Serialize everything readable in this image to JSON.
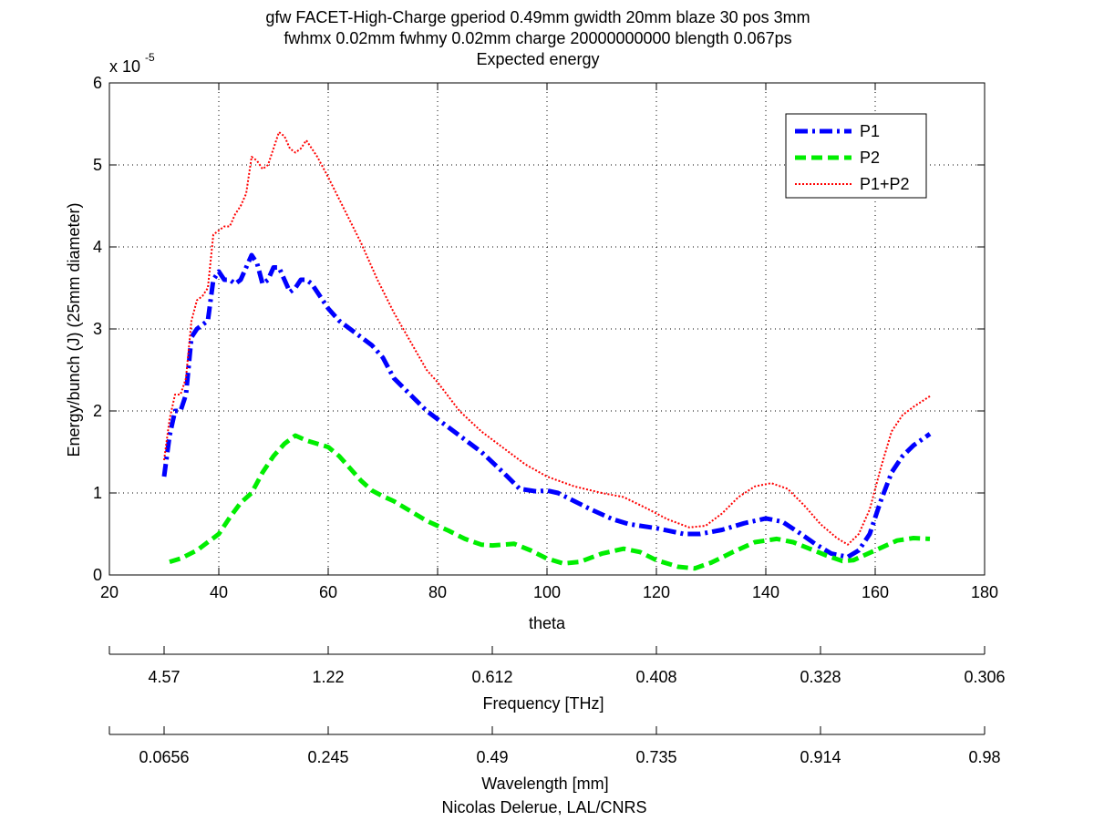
{
  "chart_data": {
    "type": "line",
    "title_lines": [
      "gfw FACET-High-Charge gperiod 0.49mm gwidth 20mm blaze 30 pos 3mm",
      "fwhmx 0.02mm fwhmy 0.02mm charge 20000000000 blength 0.067ps",
      "Expected energy"
    ],
    "xlabel": "theta",
    "ylabel": "Energy/bunch (J) (25mm diameter)",
    "y_multiplier": "x 10",
    "y_exponent": "-5",
    "xlim": [
      20,
      180
    ],
    "ylim": [
      0,
      6
    ],
    "xticks": [
      20,
      40,
      60,
      80,
      100,
      120,
      140,
      160,
      180
    ],
    "yticks": [
      0,
      1,
      2,
      3,
      4,
      5,
      6
    ],
    "grid": true,
    "legend_position": "top-right",
    "series": [
      {
        "name": "P1",
        "color": "#0000ff",
        "style": "dash-dot",
        "points": [
          [
            30,
            1.2
          ],
          [
            31,
            1.7
          ],
          [
            32,
            2.0
          ],
          [
            33,
            2.0
          ],
          [
            34,
            2.2
          ],
          [
            35,
            2.9
          ],
          [
            36,
            3.0
          ],
          [
            37,
            3.05
          ],
          [
            38,
            3.1
          ],
          [
            39,
            3.6
          ],
          [
            40,
            3.7
          ],
          [
            41,
            3.6
          ],
          [
            42,
            3.6
          ],
          [
            43,
            3.55
          ],
          [
            44,
            3.6
          ],
          [
            45,
            3.75
          ],
          [
            46,
            3.9
          ],
          [
            47,
            3.8
          ],
          [
            48,
            3.55
          ],
          [
            49,
            3.6
          ],
          [
            50,
            3.75
          ],
          [
            51,
            3.75
          ],
          [
            52,
            3.6
          ],
          [
            53,
            3.45
          ],
          [
            54,
            3.5
          ],
          [
            55,
            3.6
          ],
          [
            56,
            3.6
          ],
          [
            57,
            3.55
          ],
          [
            58,
            3.45
          ],
          [
            60,
            3.25
          ],
          [
            62,
            3.1
          ],
          [
            64,
            3.0
          ],
          [
            66,
            2.9
          ],
          [
            68,
            2.8
          ],
          [
            70,
            2.65
          ],
          [
            72,
            2.4
          ],
          [
            75,
            2.2
          ],
          [
            78,
            2.0
          ],
          [
            80,
            1.9
          ],
          [
            84,
            1.7
          ],
          [
            88,
            1.5
          ],
          [
            92,
            1.25
          ],
          [
            95,
            1.05
          ],
          [
            98,
            1.02
          ],
          [
            100,
            1.03
          ],
          [
            102,
            1.0
          ],
          [
            105,
            0.9
          ],
          [
            108,
            0.8
          ],
          [
            112,
            0.68
          ],
          [
            115,
            0.62
          ],
          [
            120,
            0.57
          ],
          [
            125,
            0.5
          ],
          [
            128,
            0.5
          ],
          [
            132,
            0.55
          ],
          [
            136,
            0.63
          ],
          [
            140,
            0.69
          ],
          [
            143,
            0.65
          ],
          [
            146,
            0.52
          ],
          [
            149,
            0.38
          ],
          [
            152,
            0.26
          ],
          [
            155,
            0.22
          ],
          [
            157,
            0.3
          ],
          [
            159,
            0.5
          ],
          [
            161,
            0.9
          ],
          [
            163,
            1.25
          ],
          [
            165,
            1.45
          ],
          [
            167,
            1.58
          ],
          [
            170,
            1.72
          ]
        ]
      },
      {
        "name": "P2",
        "color": "#00ee00",
        "style": "dashed",
        "points": [
          [
            31,
            0.16
          ],
          [
            33,
            0.2
          ],
          [
            36,
            0.3
          ],
          [
            40,
            0.5
          ],
          [
            42,
            0.7
          ],
          [
            44,
            0.88
          ],
          [
            46,
            1.0
          ],
          [
            48,
            1.25
          ],
          [
            50,
            1.45
          ],
          [
            52,
            1.6
          ],
          [
            54,
            1.7
          ],
          [
            56,
            1.64
          ],
          [
            58,
            1.6
          ],
          [
            60,
            1.56
          ],
          [
            62,
            1.45
          ],
          [
            64,
            1.3
          ],
          [
            66,
            1.15
          ],
          [
            68,
            1.03
          ],
          [
            70,
            0.96
          ],
          [
            72,
            0.9
          ],
          [
            75,
            0.78
          ],
          [
            78,
            0.66
          ],
          [
            82,
            0.54
          ],
          [
            85,
            0.44
          ],
          [
            88,
            0.37
          ],
          [
            90,
            0.36
          ],
          [
            94,
            0.38
          ],
          [
            97,
            0.3
          ],
          [
            100,
            0.2
          ],
          [
            103,
            0.14
          ],
          [
            106,
            0.16
          ],
          [
            110,
            0.26
          ],
          [
            114,
            0.32
          ],
          [
            117,
            0.28
          ],
          [
            120,
            0.18
          ],
          [
            124,
            0.1
          ],
          [
            127,
            0.08
          ],
          [
            130,
            0.15
          ],
          [
            134,
            0.28
          ],
          [
            138,
            0.4
          ],
          [
            142,
            0.44
          ],
          [
            145,
            0.4
          ],
          [
            148,
            0.32
          ],
          [
            151,
            0.24
          ],
          [
            154,
            0.17
          ],
          [
            156,
            0.18
          ],
          [
            158,
            0.24
          ],
          [
            161,
            0.33
          ],
          [
            164,
            0.42
          ],
          [
            167,
            0.45
          ],
          [
            170,
            0.44
          ]
        ]
      },
      {
        "name": "P1+P2",
        "color": "#ff0000",
        "style": "dotted",
        "points": [
          [
            30,
            1.4
          ],
          [
            31,
            1.9
          ],
          [
            32,
            2.2
          ],
          [
            33,
            2.2
          ],
          [
            34,
            2.4
          ],
          [
            35,
            3.1
          ],
          [
            36,
            3.35
          ],
          [
            37,
            3.4
          ],
          [
            38,
            3.5
          ],
          [
            39,
            4.15
          ],
          [
            40,
            4.2
          ],
          [
            41,
            4.25
          ],
          [
            42,
            4.25
          ],
          [
            43,
            4.4
          ],
          [
            44,
            4.5
          ],
          [
            45,
            4.65
          ],
          [
            46,
            5.1
          ],
          [
            47,
            5.05
          ],
          [
            48,
            4.95
          ],
          [
            49,
            5.0
          ],
          [
            50,
            5.2
          ],
          [
            51,
            5.4
          ],
          [
            52,
            5.35
          ],
          [
            53,
            5.2
          ],
          [
            54,
            5.15
          ],
          [
            55,
            5.2
          ],
          [
            56,
            5.3
          ],
          [
            57,
            5.2
          ],
          [
            58,
            5.1
          ],
          [
            60,
            4.85
          ],
          [
            63,
            4.45
          ],
          [
            66,
            4.05
          ],
          [
            69,
            3.6
          ],
          [
            72,
            3.2
          ],
          [
            75,
            2.85
          ],
          [
            78,
            2.5
          ],
          [
            80,
            2.35
          ],
          [
            84,
            2.0
          ],
          [
            88,
            1.75
          ],
          [
            92,
            1.55
          ],
          [
            96,
            1.35
          ],
          [
            100,
            1.2
          ],
          [
            105,
            1.08
          ],
          [
            110,
            1.0
          ],
          [
            114,
            0.95
          ],
          [
            118,
            0.82
          ],
          [
            122,
            0.68
          ],
          [
            126,
            0.58
          ],
          [
            129,
            0.6
          ],
          [
            132,
            0.75
          ],
          [
            135,
            0.95
          ],
          [
            138,
            1.08
          ],
          [
            141,
            1.12
          ],
          [
            144,
            1.05
          ],
          [
            147,
            0.85
          ],
          [
            150,
            0.62
          ],
          [
            153,
            0.45
          ],
          [
            155,
            0.37
          ],
          [
            157,
            0.5
          ],
          [
            159,
            0.8
          ],
          [
            161,
            1.3
          ],
          [
            163,
            1.75
          ],
          [
            165,
            1.95
          ],
          [
            167,
            2.05
          ],
          [
            170,
            2.18
          ]
        ]
      }
    ],
    "secondary_axes": [
      {
        "label": "Frequency [THz]",
        "ticks": [
          "4.57",
          "1.22",
          "0.612",
          "0.408",
          "0.328",
          "0.306"
        ],
        "tick_theta": [
          30,
          60,
          90,
          120,
          150,
          180
        ]
      },
      {
        "label": "Wavelength [mm]",
        "ticks": [
          "0.0656",
          "0.245",
          "0.49",
          "0.735",
          "0.914",
          "0.98"
        ],
        "tick_theta": [
          30,
          60,
          90,
          120,
          150,
          180
        ]
      }
    ],
    "footer": "Nicolas Delerue, LAL/CNRS"
  }
}
